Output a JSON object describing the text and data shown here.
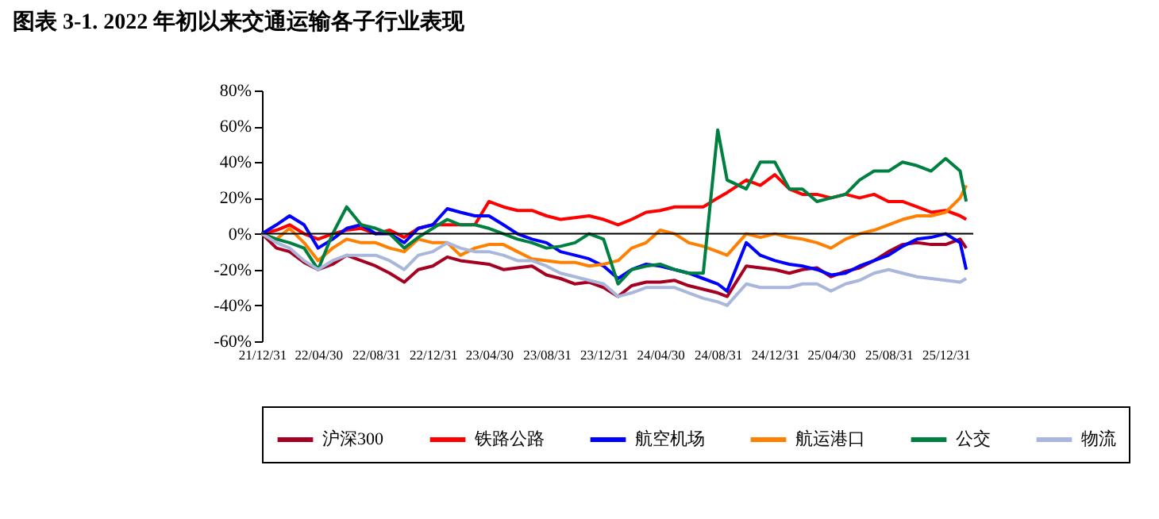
{
  "chart_data": {
    "type": "line",
    "title": "图表 3-1. 2022 年初以来交通运输各子行业表现",
    "x": [
      "2021-12-31",
      "2022-01-31",
      "2022-02-28",
      "2022-03-31",
      "2022-04-30",
      "2022-05-31",
      "2022-06-30",
      "2022-07-31",
      "2022-08-31",
      "2022-09-30",
      "2022-10-31",
      "2022-11-30",
      "2022-12-31",
      "2023-01-31",
      "2023-02-28",
      "2023-03-31",
      "2023-04-30",
      "2023-05-31",
      "2023-06-30",
      "2023-07-31",
      "2023-08-31",
      "2023-09-30",
      "2023-10-31",
      "2023-11-30",
      "2023-12-31",
      "2024-01-31",
      "2024-02-29",
      "2024-03-31",
      "2024-04-30",
      "2024-05-31",
      "2024-06-30",
      "2024-07-31",
      "2024-08-31",
      "2024-09-20",
      "2024-10-31",
      "2024-11-30",
      "2024-12-31",
      "2025-01-31",
      "2025-02-28",
      "2025-03-31",
      "2025-04-30",
      "2025-05-31",
      "2025-06-30",
      "2025-07-31",
      "2025-08-31",
      "2025-09-30",
      "2025-10-31",
      "2025-11-30",
      "2025-12-31",
      "2026-01-31",
      "2026-02-13"
    ],
    "series": [
      {
        "name": "沪深300",
        "color": "#a50021",
        "values": [
          0,
          -8,
          -10,
          -16,
          -20,
          -17,
          -12,
          -15,
          -18,
          -22,
          -27,
          -20,
          -18,
          -13,
          -15,
          -16,
          -17,
          -20,
          -19,
          -18,
          -23,
          -25,
          -28,
          -27,
          -30,
          -35,
          -29,
          -27,
          -27,
          -26,
          -29,
          -31,
          -33,
          -35,
          -18,
          -19,
          -20,
          -22,
          -20,
          -19,
          -24,
          -21,
          -19,
          -15,
          -10,
          -6,
          -5,
          -6,
          -6,
          -3,
          -8
        ]
      },
      {
        "name": "铁路公路",
        "color": "#ff0000",
        "values": [
          0,
          2,
          5,
          0,
          -3,
          0,
          2,
          3,
          0,
          2,
          -2,
          3,
          5,
          5,
          5,
          5,
          18,
          15,
          13,
          13,
          10,
          8,
          9,
          10,
          8,
          5,
          8,
          12,
          13,
          15,
          15,
          15,
          20,
          23,
          30,
          27,
          33,
          25,
          22,
          22,
          20,
          22,
          20,
          22,
          18,
          18,
          15,
          12,
          13,
          10,
          8
        ]
      },
      {
        "name": "航空机场",
        "color": "#0000ff",
        "values": [
          0,
          5,
          10,
          5,
          -8,
          -3,
          3,
          5,
          0,
          0,
          -5,
          3,
          5,
          14,
          12,
          10,
          10,
          5,
          0,
          -3,
          -5,
          -10,
          -12,
          -14,
          -18,
          -25,
          -20,
          -17,
          -18,
          -20,
          -22,
          -25,
          -28,
          -32,
          -5,
          -12,
          -15,
          -17,
          -18,
          -20,
          -23,
          -22,
          -18,
          -15,
          -12,
          -7,
          -3,
          -2,
          0,
          -5,
          -20
        ]
      },
      {
        "name": "航运港口",
        "color": "#ff8000",
        "values": [
          0,
          -3,
          3,
          -5,
          -15,
          -8,
          -3,
          -5,
          -5,
          -8,
          -10,
          -3,
          -5,
          -5,
          -12,
          -8,
          -6,
          -6,
          -10,
          -14,
          -15,
          -16,
          -16,
          -18,
          -17,
          -15,
          -8,
          -5,
          2,
          0,
          -5,
          -7,
          -10,
          -12,
          0,
          -2,
          0,
          -2,
          -3,
          -5,
          -8,
          -3,
          0,
          2,
          5,
          8,
          10,
          10,
          12,
          20,
          27
        ]
      },
      {
        "name": "公交",
        "color": "#008040",
        "values": [
          0,
          -3,
          -5,
          -8,
          -20,
          0,
          15,
          5,
          3,
          0,
          -8,
          -2,
          3,
          8,
          5,
          5,
          3,
          0,
          -3,
          -5,
          -8,
          -7,
          -5,
          0,
          -3,
          -28,
          -20,
          -18,
          -17,
          -20,
          -22,
          -22,
          58,
          30,
          25,
          40,
          40,
          25,
          25,
          18,
          20,
          22,
          30,
          35,
          35,
          40,
          38,
          35,
          42,
          35,
          18
        ]
      },
      {
        "name": "物流",
        "color": "#a9b7dc",
        "values": [
          0,
          -5,
          -8,
          -15,
          -20,
          -15,
          -12,
          -12,
          -12,
          -15,
          -20,
          -12,
          -10,
          -5,
          -8,
          -10,
          -10,
          -12,
          -15,
          -15,
          -18,
          -22,
          -24,
          -26,
          -28,
          -35,
          -33,
          -30,
          -30,
          -30,
          -33,
          -36,
          -38,
          -40,
          -28,
          -30,
          -30,
          -30,
          -28,
          -28,
          -32,
          -28,
          -26,
          -22,
          -20,
          -22,
          -24,
          -25,
          -26,
          -27,
          -25
        ]
      }
    ],
    "xlim": [
      "2021-12-31",
      "2026-02-28"
    ],
    "xticks": [
      {
        "value": "2021-12-31",
        "label": "21/12/31"
      },
      {
        "value": "2022-04-30",
        "label": "22/04/30"
      },
      {
        "value": "2022-08-31",
        "label": "22/08/31"
      },
      {
        "value": "2022-12-31",
        "label": "22/12/31"
      },
      {
        "value": "2023-04-30",
        "label": "23/04/30"
      },
      {
        "value": "2023-08-31",
        "label": "23/08/31"
      },
      {
        "value": "2023-12-31",
        "label": "23/12/31"
      },
      {
        "value": "2024-04-30",
        "label": "24/04/30"
      },
      {
        "value": "2024-08-31",
        "label": "24/08/31"
      },
      {
        "value": "2024-12-31",
        "label": "24/12/31"
      },
      {
        "value": "2025-04-30",
        "label": "25/04/30"
      },
      {
        "value": "2025-08-31",
        "label": "25/08/31"
      },
      {
        "value": "2025-12-31",
        "label": "25/12/31"
      }
    ],
    "ylim": [
      -60,
      80
    ],
    "yticks": [
      {
        "value": -60,
        "label": "-60%"
      },
      {
        "value": -40,
        "label": "-40%"
      },
      {
        "value": -20,
        "label": "-20%"
      },
      {
        "value": 0,
        "label": "0%"
      },
      {
        "value": 20,
        "label": "20%"
      },
      {
        "value": 40,
        "label": "40%"
      },
      {
        "value": 60,
        "label": "60%"
      },
      {
        "value": 80,
        "label": "80%"
      }
    ],
    "ref_lines": [
      {
        "axis": "y",
        "value": 0,
        "color": "#000000"
      }
    ],
    "legend": "bottom"
  }
}
